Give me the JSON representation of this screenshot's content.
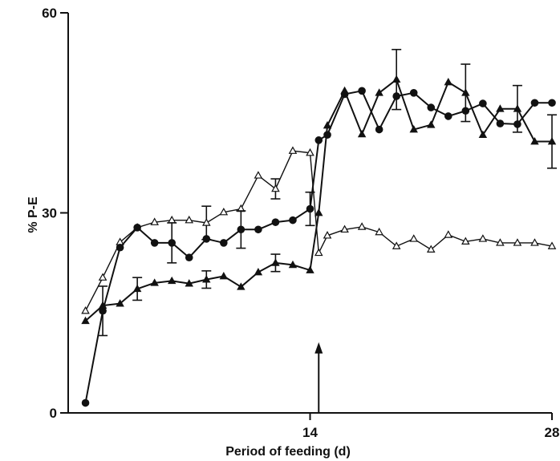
{
  "chart_data": {
    "type": "line",
    "title": "",
    "xlabel": "Period of feeding (d)",
    "ylabel": "% P-E",
    "xlim": [
      0,
      28
    ],
    "ylim": [
      0,
      60
    ],
    "xticks": [
      14,
      28
    ],
    "yticks": [
      0,
      30,
      60
    ],
    "x_tick_labels": [
      "14",
      "28"
    ],
    "y_tick_labels": [
      "0",
      "30",
      "60"
    ],
    "grid": false,
    "legend": "none",
    "annotations": [
      {
        "type": "arrow",
        "x": 14.5,
        "y_from": 0,
        "y_to": 10.6
      }
    ],
    "series": [
      {
        "marker": "open-triangle",
        "x": [
          1,
          2,
          3,
          4,
          5,
          6,
          7,
          8,
          9,
          10,
          11,
          12,
          13,
          14,
          14.5,
          15,
          16,
          17,
          18,
          19,
          20,
          21,
          22,
          23,
          24,
          25,
          26,
          27,
          28
        ],
        "y": [
          15.3,
          20.3,
          25.6,
          27.8,
          28.6,
          28.9,
          28.9,
          28.5,
          30.1,
          30.6,
          35.6,
          33.6,
          39.3,
          39.0,
          24.0,
          26.6,
          27.5,
          27.9,
          27.1,
          25.0,
          26.1,
          24.5,
          26.7,
          25.7,
          26.1,
          25.5,
          25.5,
          25.5,
          25.0
        ],
        "errors": [
          0,
          0,
          0,
          0,
          0,
          0,
          0,
          2.5,
          0,
          0,
          0,
          1.5,
          0,
          0,
          0,
          0,
          0,
          0,
          0,
          0,
          0,
          0,
          0,
          0,
          0,
          0,
          0,
          0,
          0
        ]
      },
      {
        "marker": "filled-circle",
        "x": [
          1,
          2,
          3,
          4,
          5,
          6,
          7,
          8,
          9,
          10,
          11,
          12,
          13,
          14,
          14.5,
          15,
          16,
          17,
          18,
          19,
          20,
          21,
          22,
          23,
          24,
          25,
          26,
          27,
          28
        ],
        "y": [
          1.5,
          15.3,
          24.8,
          27.8,
          25.5,
          25.5,
          23.3,
          26.1,
          25.5,
          27.5,
          27.5,
          28.6,
          28.9,
          30.6,
          40.9,
          41.7,
          47.8,
          48.3,
          42.5,
          47.5,
          48.0,
          45.8,
          44.5,
          45.3,
          46.4,
          43.4,
          43.3,
          46.5,
          46.5
        ],
        "errors": [
          0,
          3.7,
          0,
          0,
          0,
          3.0,
          0,
          0,
          0,
          2.8,
          0,
          0,
          0,
          2.5,
          0,
          0,
          0,
          0,
          0,
          0,
          0,
          0,
          0,
          0,
          0,
          0,
          0,
          0,
          0
        ]
      },
      {
        "marker": "filled-triangle",
        "x": [
          1,
          2,
          3,
          4,
          5,
          6,
          7,
          8,
          9,
          10,
          11,
          12,
          13,
          14,
          14.5,
          15,
          16,
          17,
          18,
          19,
          20,
          21,
          22,
          23,
          24,
          25,
          26,
          27,
          28
        ],
        "y": [
          13.8,
          16.1,
          16.4,
          18.6,
          19.5,
          19.8,
          19.4,
          20.0,
          20.5,
          18.9,
          21.1,
          22.5,
          22.2,
          21.4,
          30.0,
          43.1,
          48.3,
          41.8,
          48.0,
          50.0,
          42.5,
          43.2,
          49.6,
          48.0,
          41.7,
          45.6,
          45.6,
          40.7,
          40.7
        ],
        "errors": [
          0,
          0,
          0,
          1.7,
          0,
          0,
          0,
          1.3,
          0,
          0,
          0,
          1.3,
          0,
          0,
          0,
          0,
          0,
          0,
          0,
          4.5,
          0,
          0,
          0,
          4.3,
          0,
          0,
          3.5,
          0,
          4.0
        ]
      }
    ]
  }
}
